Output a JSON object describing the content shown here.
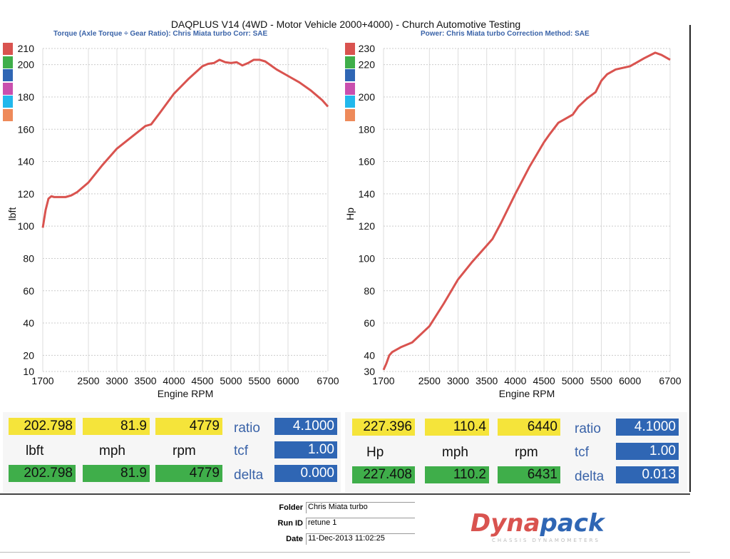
{
  "header": {
    "title": "DAQPLUS V14 (4WD - Motor Vehicle 2000+4000) - Church Automotive Testing",
    "left_subtitle": "Torque (Axle Torque ÷ Gear Ratio): Chris Miata turbo     Corr: SAE",
    "right_subtitle": "Power: Chris Miata turbo     Correction Method: SAE"
  },
  "legend_colors": [
    "#d9534f",
    "#3fae4a",
    "#2f66b4",
    "#c94fae",
    "#22b8ec",
    "#ee8a5a"
  ],
  "chart_data": [
    {
      "type": "line",
      "title": "Torque",
      "xlabel": "Engine RPM",
      "ylabel": "lbft",
      "xlim": [
        1700,
        6700
      ],
      "ylim": [
        10,
        210
      ],
      "xticks": [
        1700,
        2500,
        3000,
        3500,
        4000,
        4500,
        5000,
        5500,
        6000,
        6700
      ],
      "yticks": [
        10,
        20,
        40,
        60,
        80,
        100,
        120,
        140,
        160,
        180,
        200,
        210
      ],
      "color": "#d9534f",
      "x": [
        1700,
        1750,
        1800,
        1850,
        1900,
        2000,
        2100,
        2200,
        2300,
        2500,
        2750,
        3000,
        3250,
        3500,
        3600,
        3750,
        4000,
        4250,
        4500,
        4600,
        4700,
        4800,
        4900,
        5000,
        5100,
        5200,
        5300,
        5400,
        5500,
        5600,
        5700,
        5800,
        6000,
        6200,
        6400,
        6500,
        6600,
        6700
      ],
      "y": [
        99,
        110,
        117,
        118.5,
        118,
        118,
        118,
        119,
        121,
        127,
        138,
        148,
        155,
        162,
        163,
        170,
        182,
        191,
        199,
        200.5,
        201,
        203,
        201.5,
        201,
        201.5,
        199.5,
        201,
        203,
        203,
        202,
        199.5,
        197,
        193,
        189,
        184,
        181,
        178,
        174
      ]
    },
    {
      "type": "line",
      "title": "Power",
      "xlabel": "Engine RPM",
      "ylabel": "Hp",
      "xlim": [
        1700,
        6700
      ],
      "ylim": [
        30,
        230
      ],
      "xticks": [
        1700,
        2500,
        3000,
        3500,
        4000,
        4500,
        5000,
        5500,
        6000,
        6700
      ],
      "yticks": [
        30,
        40,
        60,
        80,
        100,
        120,
        140,
        160,
        180,
        200,
        220,
        230
      ],
      "color": "#d9534f",
      "x": [
        1700,
        1750,
        1800,
        1850,
        1900,
        2000,
        2200,
        2500,
        2750,
        3000,
        3250,
        3500,
        3600,
        3750,
        4000,
        4250,
        4500,
        4600,
        4750,
        5000,
        5100,
        5250,
        5400,
        5500,
        5600,
        5750,
        6000,
        6100,
        6250,
        6440,
        6550,
        6700
      ],
      "y": [
        31,
        35,
        40,
        42,
        43,
        45,
        48,
        58,
        72,
        87,
        98,
        108,
        112,
        122,
        140,
        157,
        172,
        177,
        184,
        189,
        194,
        199,
        203,
        210,
        214,
        217,
        219,
        221,
        224,
        227.4,
        226,
        223
      ]
    }
  ],
  "readout": [
    {
      "top": [
        "202.798",
        "81.9",
        "4779"
      ],
      "units": [
        "lbft",
        "mph",
        "rpm"
      ],
      "bottom": [
        "202.798",
        "81.9",
        "4779"
      ],
      "ratio": "4.1000",
      "tcf": "1.00",
      "delta": "0.000"
    },
    {
      "top": [
        "227.396",
        "110.4",
        "6440"
      ],
      "units": [
        "Hp",
        "mph",
        "rpm"
      ],
      "bottom": [
        "227.408",
        "110.2",
        "6431"
      ],
      "ratio": "4.1000",
      "tcf": "1.00",
      "delta": "0.013"
    }
  ],
  "param_labels": {
    "ratio": "ratio",
    "tcf": "tcf",
    "delta": "delta"
  },
  "footer": {
    "folder_label": "Folder",
    "folder": "Chris Miata turbo",
    "run_label": "Run ID",
    "run": "retune 1",
    "date_label": "Date",
    "date": "11-Dec-2013 11:02:25",
    "logo_a": "Dyna",
    "logo_b": "pack",
    "logo_tagline": "CHASSIS DYNAMOMETERS"
  }
}
